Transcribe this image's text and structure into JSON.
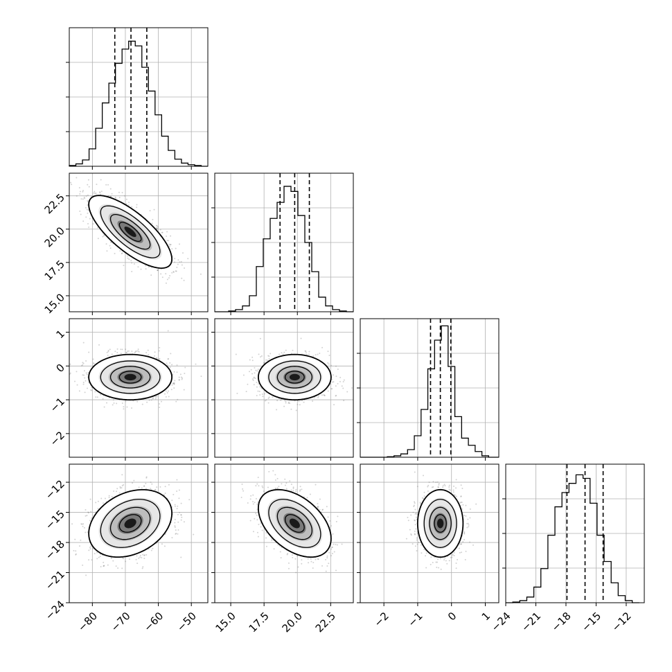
{
  "figure": {
    "type": "corner-plot",
    "panel_count": 10
  },
  "chart_data": {
    "type": "corner",
    "parameters": [
      {
        "index": 0,
        "range": [
          -87,
          -45
        ],
        "ticks": [
          -80,
          -70,
          -60,
          -50
        ],
        "tick_labels": [
          "−80",
          "−70",
          "−60",
          "−50"
        ],
        "quantiles": [
          -73.2,
          -68.3,
          -63.5
        ],
        "histogram": {
          "bin_edges": [
            -87,
            -85,
            -83,
            -81,
            -79,
            -77,
            -75,
            -73,
            -71,
            -69,
            -67,
            -65,
            -63,
            -61,
            -59,
            -57,
            -55,
            -53,
            -51,
            -49,
            -47,
            -45
          ],
          "counts": [
            1,
            3,
            8,
            22,
            48,
            80,
            105,
            130,
            148,
            158,
            152,
            125,
            95,
            65,
            38,
            20,
            9,
            4,
            2,
            1,
            0
          ],
          "ymax": 175
        }
      },
      {
        "index": 1,
        "range": [
          13.8,
          24.2
        ],
        "ticks": [
          15.0,
          17.5,
          20.0,
          22.5
        ],
        "tick_labels": [
          "15.0",
          "17.5",
          "20.0",
          "22.5"
        ],
        "quantiles": [
          18.7,
          19.8,
          20.9
        ],
        "histogram": {
          "bin_edges": [
            13.8,
            14.32,
            14.84,
            15.36,
            15.88,
            16.4,
            16.92,
            17.44,
            17.96,
            18.48,
            19.0,
            19.52,
            20.04,
            20.56,
            21.08,
            21.6,
            22.12,
            22.64,
            23.16,
            23.68,
            24.2
          ],
          "counts": [
            0,
            0,
            1,
            3,
            8,
            22,
            62,
            100,
            128,
            150,
            172,
            165,
            132,
            95,
            55,
            20,
            8,
            3,
            1,
            0
          ],
          "ymax": 190
        }
      },
      {
        "index": 2,
        "range": [
          -2.7,
          1.4
        ],
        "ticks": [
          -2,
          -1,
          0,
          1
        ],
        "tick_labels": [
          "−2",
          "−1",
          "0",
          "1"
        ],
        "quantiles": [
          -0.62,
          -0.33,
          -0.02
        ],
        "histogram": {
          "bin_edges": [
            -2.7,
            -2.5,
            -2.3,
            -2.1,
            -1.9,
            -1.7,
            -1.5,
            -1.3,
            -1.1,
            -0.9,
            -0.7,
            -0.5,
            -0.3,
            -0.1,
            0.1,
            0.3,
            0.5,
            0.7,
            0.9,
            1.1,
            1.4
          ],
          "counts": [
            0,
            0,
            0,
            0,
            1,
            3,
            7,
            16,
            45,
            100,
            185,
            245,
            275,
            190,
            85,
            40,
            25,
            12,
            3,
            0
          ],
          "ymax": 290
        }
      },
      {
        "index": 3,
        "range": [
          -24,
          -10.2
        ],
        "ticks": [
          -24,
          -21,
          -18,
          -15,
          -12
        ],
        "tick_labels": [
          "−24",
          "−21",
          "−18",
          "−15",
          "−12"
        ],
        "quantiles": [
          -17.9,
          -16.1,
          -14.3
        ],
        "histogram": {
          "bin_edges": [
            -24.0,
            -23.3,
            -22.6,
            -21.9,
            -21.2,
            -20.5,
            -19.8,
            -19.1,
            -18.4,
            -17.7,
            -17.0,
            -16.3,
            -15.6,
            -14.9,
            -14.2,
            -13.5,
            -12.8,
            -12.1,
            -11.4,
            -10.7
          ],
          "counts": [
            0,
            1,
            3,
            8,
            22,
            48,
            95,
            135,
            155,
            168,
            180,
            175,
            140,
            95,
            58,
            28,
            10,
            3,
            0
          ],
          "ymax": 195
        }
      }
    ],
    "pairs": [
      {
        "x": 0,
        "y": 1,
        "mean": [
          -68.5,
          19.8
        ],
        "sd": [
          6.0,
          1.3
        ],
        "rho": -0.75,
        "n_points": 1400
      },
      {
        "x": 0,
        "y": 2,
        "mean": [
          -68.5,
          -0.33
        ],
        "sd": [
          6.0,
          0.32
        ],
        "rho": 0.0,
        "n_points": 1400
      },
      {
        "x": 1,
        "y": 2,
        "mean": [
          19.8,
          -0.33
        ],
        "sd": [
          1.3,
          0.32
        ],
        "rho": 0.0,
        "n_points": 1400
      },
      {
        "x": 0,
        "y": 3,
        "mean": [
          -68.5,
          -16.1
        ],
        "sd": [
          6.0,
          1.6
        ],
        "rho": 0.3,
        "n_points": 1400
      },
      {
        "x": 1,
        "y": 3,
        "mean": [
          19.8,
          -16.1
        ],
        "sd": [
          1.3,
          1.6
        ],
        "rho": -0.45,
        "n_points": 1400
      },
      {
        "x": 2,
        "y": 3,
        "mean": [
          -0.33,
          -16.1
        ],
        "sd": [
          0.32,
          1.6
        ],
        "rho": 0.0,
        "n_points": 1400
      }
    ],
    "contour_levels_sigma": [
      0.5,
      1.0,
      1.5,
      2.0
    ],
    "grid": true,
    "colors": {
      "line": "#000000",
      "grid": "#b0b0b0",
      "points": "#7f7f7f"
    }
  }
}
